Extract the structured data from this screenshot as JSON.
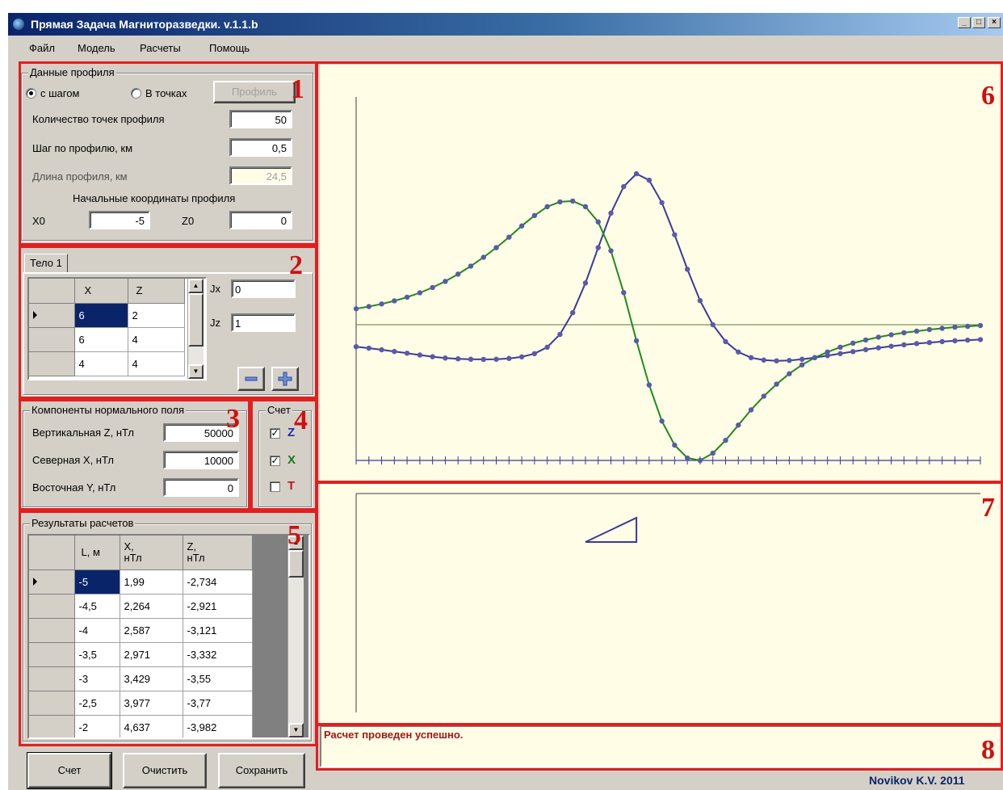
{
  "window": {
    "title": "Прямая Задача Магниторазведки. v.1.1.b",
    "minimize": "_",
    "maximize": "□",
    "close": "×"
  },
  "menu": [
    "Файл",
    "Модель",
    "Расчеты",
    "Помощь"
  ],
  "badges": [
    "1",
    "2",
    "3",
    "4",
    "5",
    "6",
    "7",
    "8"
  ],
  "profile": {
    "legend": "Данные профиля",
    "radio_step": "с шагом",
    "radio_points": "В точках",
    "profile_button": "Профиль",
    "points_label": "Количество точек профиля",
    "points_value": "50",
    "step_label": "Шаг по профилю, км",
    "step_value": "0,5",
    "length_label": "Длина профиля, км",
    "length_value": "24,5",
    "start_label": "Начальные координаты профиля",
    "x0_label": "X0",
    "x0_value": "-5",
    "z0_label": "Z0",
    "z0_value": "0"
  },
  "body": {
    "tab": "Тело 1",
    "columns": [
      "X",
      "Z"
    ],
    "rows": [
      [
        "6",
        "2"
      ],
      [
        "6",
        "4"
      ],
      [
        "4",
        "4"
      ]
    ],
    "jx_label": "Jx",
    "jx_value": "0",
    "jz_label": "Jz",
    "jz_value": "1",
    "remove_icon": "minus-icon",
    "add_icon": "plus-icon"
  },
  "field": {
    "legend": "Компоненты нормального поля",
    "vertical_label": "Вертикальная Z, нТл",
    "vertical_value": "50000",
    "north_label": "Северная X, нТл",
    "north_value": "10000",
    "east_label": "Восточная Y, нТл",
    "east_value": "0"
  },
  "calc": {
    "legend": "Счет",
    "z": {
      "label": "Z",
      "checked": true,
      "color": "#2a2aa8"
    },
    "x": {
      "label": "X",
      "checked": true,
      "color": "#1a7a1a"
    },
    "t": {
      "label": "T",
      "checked": false,
      "color": "#c01818"
    }
  },
  "results": {
    "legend": "Результаты расчетов",
    "columns": [
      "L, м",
      "X,\nнТл",
      "Z,\nнТл"
    ],
    "rows": [
      [
        "-5",
        "1,99",
        "-2,734"
      ],
      [
        "-4,5",
        "2,264",
        "-2,921"
      ],
      [
        "-4",
        "2,587",
        "-3,121"
      ],
      [
        "-3,5",
        "2,971",
        "-3,332"
      ],
      [
        "-3",
        "3,429",
        "-3,55"
      ],
      [
        "-2,5",
        "3,977",
        "-3,77"
      ],
      [
        "-2",
        "4,637",
        "-3,982"
      ]
    ]
  },
  "buttons": {
    "run": "Счет",
    "clear": "Очистить",
    "save": "Сохранить"
  },
  "status": "Расчет проведен успешно.",
  "author": "Novikov K.V. 2011",
  "chart_data": {
    "type": "line",
    "x_start_km": -5,
    "x_step_km": 0.5,
    "series": [
      {
        "component": "Z",
        "color": "#3a3a9a",
        "values": [
          -2.734,
          -2.921,
          -3.121,
          -3.332,
          -3.55,
          -3.77,
          -3.982,
          -4.15,
          -4.25,
          -4.3,
          -4.32,
          -4.3,
          -4.2,
          -4.0,
          -3.6,
          -2.8,
          -1.2,
          1.5,
          5.2,
          9.6,
          13.9,
          17.2,
          18.8,
          18.0,
          15.2,
          11.2,
          6.9,
          3.0,
          0.0,
          -2.1,
          -3.4,
          -4.1,
          -4.4,
          -4.5,
          -4.45,
          -4.3,
          -4.1,
          -3.85,
          -3.6,
          -3.35,
          -3.1,
          -2.88,
          -2.68,
          -2.5,
          -2.35,
          -2.22,
          -2.1,
          -2.0,
          -1.92,
          -1.85
        ]
      },
      {
        "component": "X",
        "color": "#1f8a1f",
        "values": [
          1.99,
          2.264,
          2.587,
          2.971,
          3.429,
          3.977,
          4.637,
          5.4,
          6.3,
          7.3,
          8.4,
          9.6,
          10.9,
          12.3,
          13.6,
          14.7,
          15.3,
          15.4,
          14.7,
          12.8,
          9.2,
          4.0,
          -2.0,
          -7.5,
          -12.0,
          -15.0,
          -16.6,
          -16.9,
          -16.0,
          -14.4,
          -12.5,
          -10.6,
          -8.9,
          -7.4,
          -6.1,
          -5.0,
          -4.1,
          -3.4,
          -2.8,
          -2.3,
          -1.9,
          -1.55,
          -1.25,
          -1.0,
          -0.8,
          -0.6,
          -0.45,
          -0.3,
          -0.2,
          -0.1
        ]
      }
    ],
    "marker_color": "#5a5aa8",
    "zero_line": true
  },
  "section": {
    "polygon_x": [
      6,
      6,
      4
    ],
    "polygon_z": [
      2,
      4,
      4
    ]
  }
}
